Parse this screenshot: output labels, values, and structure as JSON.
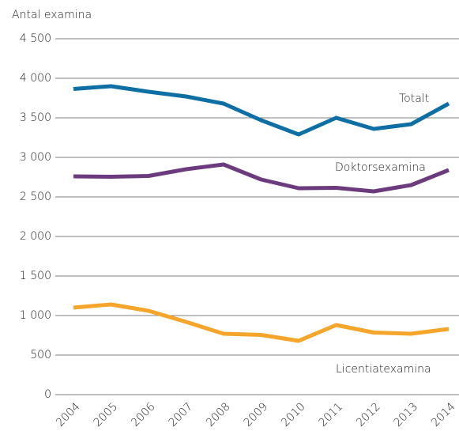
{
  "chart_data": {
    "type": "line",
    "y_label": "Antal examina",
    "categories": [
      "2004",
      "2005",
      "2006",
      "2007",
      "2008",
      "2009",
      "2010",
      "2011",
      "2012",
      "2013",
      "2014"
    ],
    "series": [
      {
        "name": "Totalt",
        "color": "#0e6fa5",
        "values": [
          3865,
          3900,
          3830,
          3770,
          3680,
          3470,
          3290,
          3500,
          3360,
          3420,
          3680
        ]
      },
      {
        "name": "Doktorsexamina",
        "color": "#6c3b7e",
        "values": [
          2760,
          2755,
          2765,
          2850,
          2910,
          2720,
          2610,
          2615,
          2570,
          2650,
          2840
        ]
      },
      {
        "name": "Licentiatexamina",
        "color": "#f4a52a",
        "values": [
          1100,
          1140,
          1060,
          920,
          770,
          755,
          680,
          880,
          785,
          770,
          830
        ]
      }
    ],
    "ylim": [
      0,
      4500
    ],
    "yticks": [
      0,
      500,
      {
        "value": 1000,
        "label": "1 000"
      },
      {
        "value": 1500,
        "label": "1 500"
      },
      {
        "value": 2000,
        "label": "2 000"
      },
      {
        "value": 2500,
        "label": "2 500"
      },
      {
        "value": 3000,
        "label": "3 000"
      },
      {
        "value": 3500,
        "label": "3 500"
      },
      {
        "value": 4000,
        "label": "4 000"
      },
      {
        "value": 4500,
        "label": "4 500"
      }
    ],
    "grid": true
  }
}
